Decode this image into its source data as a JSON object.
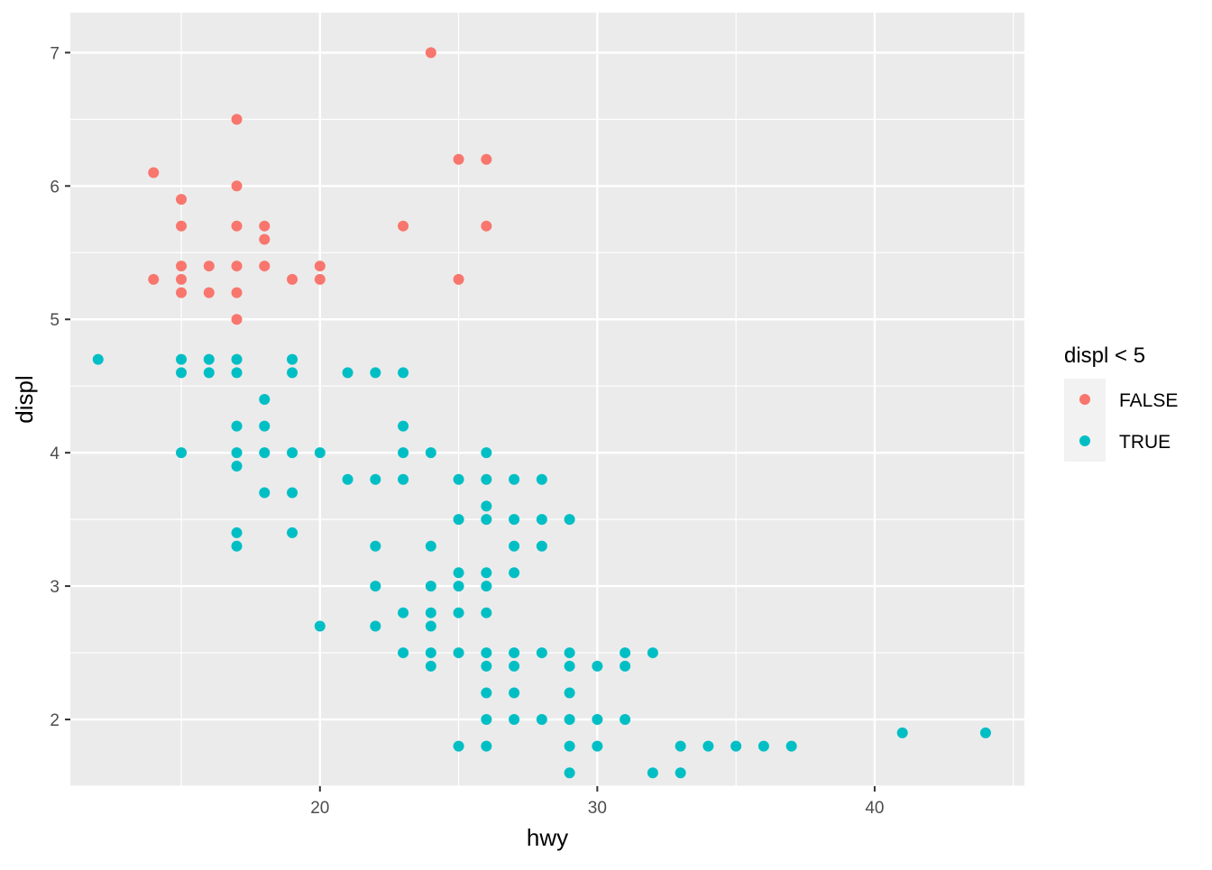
{
  "chart_data": {
    "type": "scatter",
    "xlabel": "hwy",
    "ylabel": "displ",
    "xlim": [
      11,
      45.4
    ],
    "ylim": [
      1.5,
      7.3
    ],
    "x_ticks": [
      20,
      30,
      40
    ],
    "y_ticks": [
      2,
      3,
      4,
      5,
      6,
      7
    ],
    "grid": true,
    "legend": {
      "title": "displ < 5",
      "position": "right",
      "entries": [
        "FALSE",
        "TRUE"
      ]
    },
    "colors": {
      "FALSE": "#F8766D",
      "TRUE": "#00BFC4",
      "panel": "#EBEBEB",
      "grid": "#FFFFFF"
    },
    "series": [
      {
        "name": "FALSE",
        "points": [
          [
            14,
            6.1
          ],
          [
            14,
            5.3
          ],
          [
            15,
            5.9
          ],
          [
            15,
            5.7
          ],
          [
            15,
            5.4
          ],
          [
            15,
            5.3
          ],
          [
            15,
            5.2
          ],
          [
            16,
            5.4
          ],
          [
            16,
            5.2
          ],
          [
            17,
            6.5
          ],
          [
            17,
            6.0
          ],
          [
            17,
            5.7
          ],
          [
            17,
            5.4
          ],
          [
            17,
            5.2
          ],
          [
            17,
            5.0
          ],
          [
            18,
            5.7
          ],
          [
            18,
            5.6
          ],
          [
            18,
            5.4
          ],
          [
            19,
            5.3
          ],
          [
            20,
            5.4
          ],
          [
            20,
            5.3
          ],
          [
            23,
            5.7
          ],
          [
            24,
            7.0
          ],
          [
            25,
            6.2
          ],
          [
            25,
            5.3
          ],
          [
            26,
            6.2
          ],
          [
            26,
            5.7
          ]
        ]
      },
      {
        "name": "TRUE",
        "points": [
          [
            12,
            4.7
          ],
          [
            15,
            4.7
          ],
          [
            15,
            4.6
          ],
          [
            15,
            4.0
          ],
          [
            16,
            4.7
          ],
          [
            16,
            4.6
          ],
          [
            17,
            4.7
          ],
          [
            17,
            4.6
          ],
          [
            17,
            4.2
          ],
          [
            17,
            4.0
          ],
          [
            17,
            3.9
          ],
          [
            17,
            3.4
          ],
          [
            17,
            3.3
          ],
          [
            18,
            4.4
          ],
          [
            18,
            4.2
          ],
          [
            18,
            4.0
          ],
          [
            18,
            3.7
          ],
          [
            19,
            4.7
          ],
          [
            19,
            4.6
          ],
          [
            19,
            4.0
          ],
          [
            19,
            3.7
          ],
          [
            19,
            3.4
          ],
          [
            20,
            4.0
          ],
          [
            20,
            2.7
          ],
          [
            21,
            4.6
          ],
          [
            21,
            3.8
          ],
          [
            22,
            4.6
          ],
          [
            22,
            3.8
          ],
          [
            22,
            3.3
          ],
          [
            22,
            3.0
          ],
          [
            22,
            2.7
          ],
          [
            23,
            4.6
          ],
          [
            23,
            4.2
          ],
          [
            23,
            4.0
          ],
          [
            23,
            3.8
          ],
          [
            23,
            2.8
          ],
          [
            23,
            2.5
          ],
          [
            24,
            4.0
          ],
          [
            24,
            3.3
          ],
          [
            24,
            3.0
          ],
          [
            24,
            2.8
          ],
          [
            24,
            2.7
          ],
          [
            24,
            2.5
          ],
          [
            24,
            2.4
          ],
          [
            25,
            3.8
          ],
          [
            25,
            3.5
          ],
          [
            25,
            3.1
          ],
          [
            25,
            3.0
          ],
          [
            25,
            2.8
          ],
          [
            25,
            2.5
          ],
          [
            25,
            1.8
          ],
          [
            26,
            4.0
          ],
          [
            26,
            3.8
          ],
          [
            26,
            3.6
          ],
          [
            26,
            3.5
          ],
          [
            26,
            3.1
          ],
          [
            26,
            3.0
          ],
          [
            26,
            2.8
          ],
          [
            26,
            2.5
          ],
          [
            26,
            2.4
          ],
          [
            26,
            2.2
          ],
          [
            26,
            2.0
          ],
          [
            26,
            1.8
          ],
          [
            27,
            3.8
          ],
          [
            27,
            3.5
          ],
          [
            27,
            3.3
          ],
          [
            27,
            3.1
          ],
          [
            27,
            2.5
          ],
          [
            27,
            2.4
          ],
          [
            27,
            2.2
          ],
          [
            27,
            2.0
          ],
          [
            28,
            3.8
          ],
          [
            28,
            3.5
          ],
          [
            28,
            3.3
          ],
          [
            28,
            2.5
          ],
          [
            28,
            2.0
          ],
          [
            29,
            3.5
          ],
          [
            29,
            2.5
          ],
          [
            29,
            2.4
          ],
          [
            29,
            2.2
          ],
          [
            29,
            2.0
          ],
          [
            29,
            1.8
          ],
          [
            29,
            1.6
          ],
          [
            30,
            2.4
          ],
          [
            30,
            2.0
          ],
          [
            30,
            1.8
          ],
          [
            31,
            2.5
          ],
          [
            31,
            2.4
          ],
          [
            31,
            2.0
          ],
          [
            32,
            2.5
          ],
          [
            32,
            1.6
          ],
          [
            33,
            1.8
          ],
          [
            33,
            1.6
          ],
          [
            34,
            1.8
          ],
          [
            35,
            1.8
          ],
          [
            36,
            1.8
          ],
          [
            37,
            1.8
          ],
          [
            41,
            1.9
          ],
          [
            44,
            1.9
          ]
        ]
      }
    ]
  }
}
